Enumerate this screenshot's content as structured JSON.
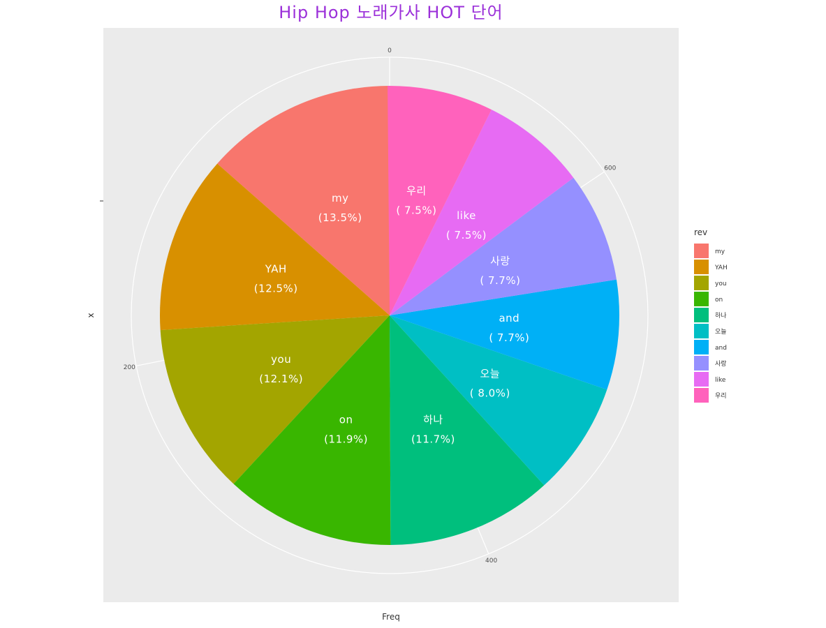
{
  "chart_data": {
    "type": "pie",
    "title": "Hip Hop 노래가사 HOT 단어",
    "xlabel": "Freq",
    "ylabel": "x",
    "legend_title": "rev",
    "legend_position": "right",
    "radial_ticks": [
      "0",
      "200",
      "400",
      "600"
    ],
    "total": 711,
    "slices": [
      {
        "name": "my",
        "value": 96,
        "percent": "(13.5%)",
        "color": "#F8766D"
      },
      {
        "name": "YAH",
        "value": 89,
        "percent": "(12.5%)",
        "color": "#D89000"
      },
      {
        "name": "you",
        "value": 86,
        "percent": "(12.1%)",
        "color": "#A3A500"
      },
      {
        "name": "on",
        "value": 85,
        "percent": "(11.9%)",
        "color": "#39B600"
      },
      {
        "name": "하나",
        "value": 83,
        "percent": "(11.7%)",
        "color": "#00BF7D"
      },
      {
        "name": "오늘",
        "value": 57,
        "percent": "( 8.0%)",
        "color": "#00BFC4"
      },
      {
        "name": "and",
        "value": 55,
        "percent": "( 7.7%)",
        "color": "#00B0F6"
      },
      {
        "name": "사랑",
        "value": 55,
        "percent": "( 7.7%)",
        "color": "#9590FF"
      },
      {
        "name": "like",
        "value": 53,
        "percent": "( 7.5%)",
        "color": "#E76BF3"
      },
      {
        "name": "우리",
        "value": 53,
        "percent": "( 7.5%)",
        "color": "#FF62BC"
      }
    ]
  }
}
